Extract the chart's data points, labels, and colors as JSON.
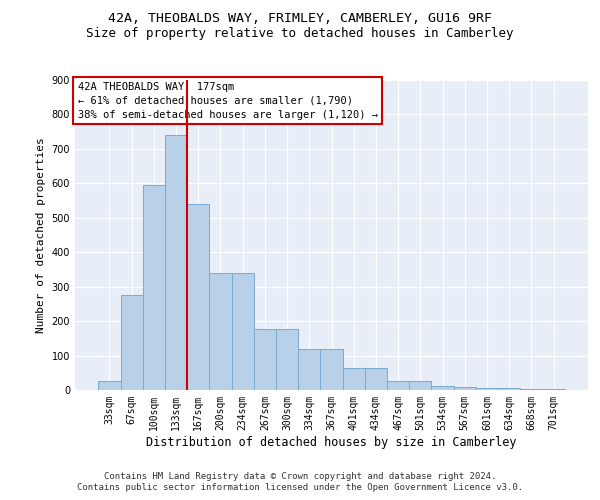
{
  "title_line1": "42A, THEOBALDS WAY, FRIMLEY, CAMBERLEY, GU16 9RF",
  "title_line2": "Size of property relative to detached houses in Camberley",
  "xlabel": "Distribution of detached houses by size in Camberley",
  "ylabel": "Number of detached properties",
  "categories": [
    "33sqm",
    "67sqm",
    "100sqm",
    "133sqm",
    "167sqm",
    "200sqm",
    "234sqm",
    "267sqm",
    "300sqm",
    "334sqm",
    "367sqm",
    "401sqm",
    "434sqm",
    "467sqm",
    "501sqm",
    "534sqm",
    "567sqm",
    "601sqm",
    "634sqm",
    "668sqm",
    "701sqm"
  ],
  "values": [
    25,
    275,
    595,
    740,
    540,
    340,
    340,
    178,
    178,
    120,
    120,
    65,
    65,
    25,
    25,
    12,
    10,
    7,
    5,
    3,
    2
  ],
  "bar_color": "#b8d0e8",
  "bar_edge_color": "#7aaad0",
  "vline_color": "#cc0000",
  "vline_index": 3.5,
  "annotation_text": "42A THEOBALDS WAY: 177sqm\n← 61% of detached houses are smaller (1,790)\n38% of semi-detached houses are larger (1,120) →",
  "annotation_box_edgecolor": "#cc0000",
  "ylim_max": 900,
  "yticks": [
    0,
    100,
    200,
    300,
    400,
    500,
    600,
    700,
    800,
    900
  ],
  "footer_line1": "Contains HM Land Registry data © Crown copyright and database right 2024.",
  "footer_line2": "Contains public sector information licensed under the Open Government Licence v3.0.",
  "bg_color": "#e8eef8",
  "grid_color": "#ffffff",
  "title_fontsize": 9.5,
  "subtitle_fontsize": 9,
  "xlabel_fontsize": 8.5,
  "ylabel_fontsize": 8,
  "tick_fontsize": 7,
  "annot_fontsize": 7.5,
  "footer_fontsize": 6.5
}
